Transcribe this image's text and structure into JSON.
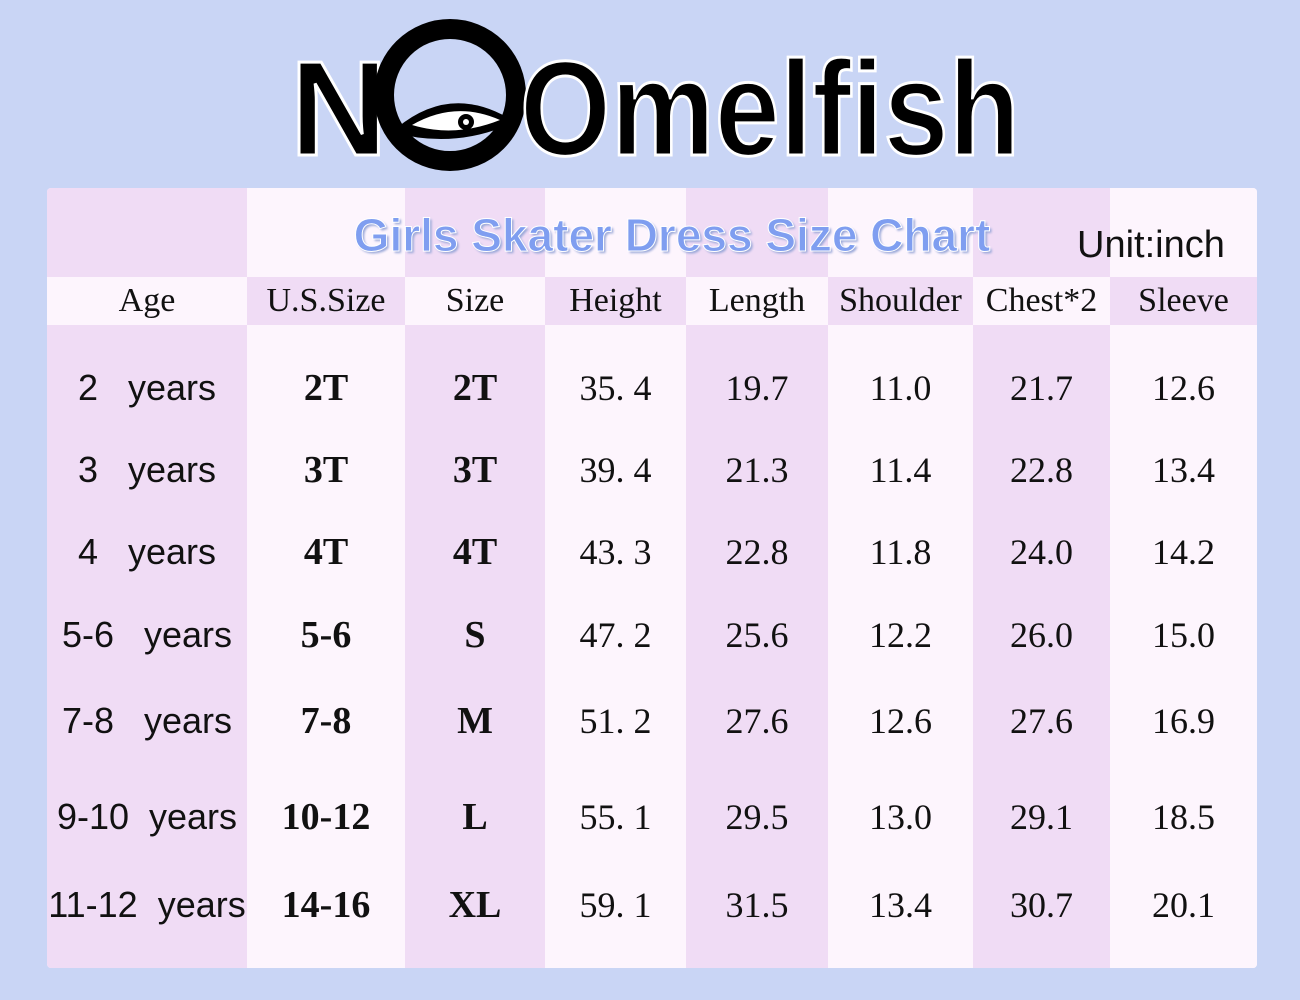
{
  "header": {
    "brand_left": "N",
    "brand_right": "Omelfish"
  },
  "table": {
    "title": "Girls Skater Dress Size Chart",
    "unit": "Unit:inch",
    "columns": [
      "Age",
      "U.S.Size",
      "Size",
      "Height",
      "Length",
      "Shoulder",
      "Chest*2",
      "Sleeve"
    ],
    "rows": [
      [
        "2   years",
        "2T",
        "2T",
        "35. 4",
        "19.7",
        "11.0",
        "21.7",
        "12.6"
      ],
      [
        "3   years",
        "3T",
        "3T",
        "39. 4",
        "21.3",
        "11.4",
        "22.8",
        "13.4"
      ],
      [
        "4   years",
        "4T",
        "4T",
        "43. 3",
        "22.8",
        "11.8",
        "24.0",
        "14.2"
      ],
      [
        "5-6   years",
        "5-6",
        "S",
        "47. 2",
        "25.6",
        "12.2",
        "26.0",
        "15.0"
      ],
      [
        "7-8   years",
        "7-8",
        "M",
        "51. 2",
        "27.6",
        "12.6",
        "27.6",
        "16.9"
      ],
      [
        "9-10  years",
        "10-12",
        "L",
        "55. 1",
        "29.5",
        "13.0",
        "29.1",
        "18.5"
      ],
      [
        "11-12  years",
        "14-16",
        "XL",
        "59. 1",
        "31.5",
        "13.4",
        "30.7",
        "20.1"
      ]
    ]
  }
}
